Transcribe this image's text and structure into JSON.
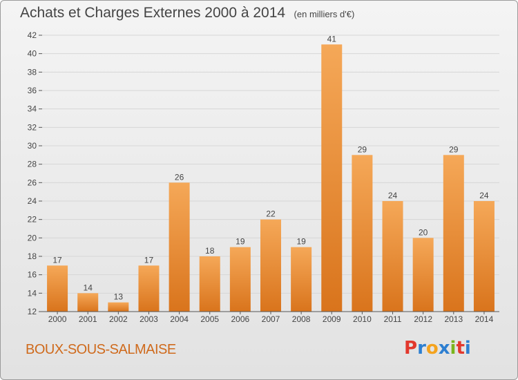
{
  "header": {
    "title": "Achats et Charges Externes 2000 à 2014",
    "unit": "(en milliers d'€)"
  },
  "footer": {
    "commune": "BOUX-SOUS-SALMAISE",
    "brand_letters": [
      "P",
      "r",
      "o",
      "x",
      "i",
      "t",
      "i"
    ],
    "brand_colors": [
      "#e2382d",
      "#2d7fd1",
      "#f4a31e",
      "#2d7fd1",
      "#7ab51d",
      "#e2382d",
      "#2d7fd1"
    ]
  },
  "colors": {
    "bar_light": "#f5a858",
    "bar_dark": "#d9741c",
    "grid": "#d6d6d6",
    "axis": "#555555"
  },
  "chart_data": {
    "type": "bar",
    "categories": [
      "2000",
      "2001",
      "2002",
      "2003",
      "2004",
      "2005",
      "2006",
      "2007",
      "2008",
      "2009",
      "2010",
      "2011",
      "2012",
      "2013",
      "2014"
    ],
    "values": [
      17,
      14,
      13,
      17,
      26,
      18,
      19,
      22,
      19,
      41,
      29,
      24,
      20,
      29,
      24
    ],
    "data_labels": [
      "17",
      "14",
      "13",
      "17",
      "26",
      "18",
      "19",
      "22",
      "19",
      "41",
      "29",
      "24",
      "20",
      "29",
      "24"
    ],
    "title": "Achats et Charges Externes 2000 à 2014",
    "xlabel": "",
    "ylabel": "",
    "ylim": [
      12,
      42
    ],
    "yticks": [
      12,
      14,
      16,
      18,
      20,
      22,
      24,
      26,
      28,
      30,
      32,
      34,
      36,
      38,
      40,
      42
    ],
    "grid": "horizontal"
  }
}
